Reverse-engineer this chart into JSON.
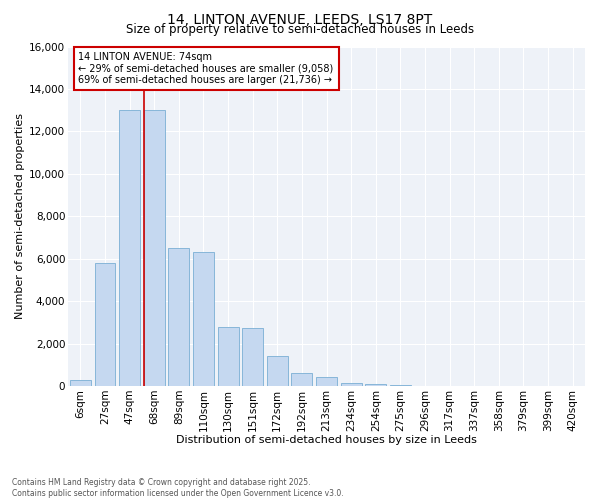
{
  "title": "14, LINTON AVENUE, LEEDS, LS17 8PT",
  "subtitle": "Size of property relative to semi-detached houses in Leeds",
  "xlabel": "Distribution of semi-detached houses by size in Leeds",
  "ylabel": "Number of semi-detached properties",
  "categories": [
    "6sqm",
    "27sqm",
    "47sqm",
    "68sqm",
    "89sqm",
    "110sqm",
    "130sqm",
    "151sqm",
    "172sqm",
    "192sqm",
    "213sqm",
    "234sqm",
    "254sqm",
    "275sqm",
    "296sqm",
    "317sqm",
    "337sqm",
    "358sqm",
    "379sqm",
    "399sqm",
    "420sqm"
  ],
  "values": [
    300,
    5800,
    13000,
    13000,
    6500,
    6300,
    2800,
    2750,
    1400,
    600,
    400,
    150,
    100,
    50,
    20,
    10,
    5,
    3,
    2,
    1,
    1
  ],
  "bar_color": "#c5d8f0",
  "bar_edge_color": "#7aafd4",
  "vline_color": "#cc0000",
  "vline_bar_index": 3,
  "annotation_title": "14 LINTON AVENUE: 74sqm",
  "annotation_line1": "← 29% of semi-detached houses are smaller (9,058)",
  "annotation_line2": "69% of semi-detached houses are larger (21,736) →",
  "annotation_box_color": "#cc0000",
  "ylim": [
    0,
    16000
  ],
  "yticks": [
    0,
    2000,
    4000,
    6000,
    8000,
    10000,
    12000,
    14000,
    16000
  ],
  "footer_line1": "Contains HM Land Registry data © Crown copyright and database right 2025.",
  "footer_line2": "Contains public sector information licensed under the Open Government Licence v3.0.",
  "plot_bg_color": "#eef2f8",
  "title_fontsize": 10,
  "subtitle_fontsize": 8.5,
  "axis_label_fontsize": 8,
  "tick_fontsize": 7.5,
  "annotation_fontsize": 7,
  "footer_fontsize": 5.5
}
